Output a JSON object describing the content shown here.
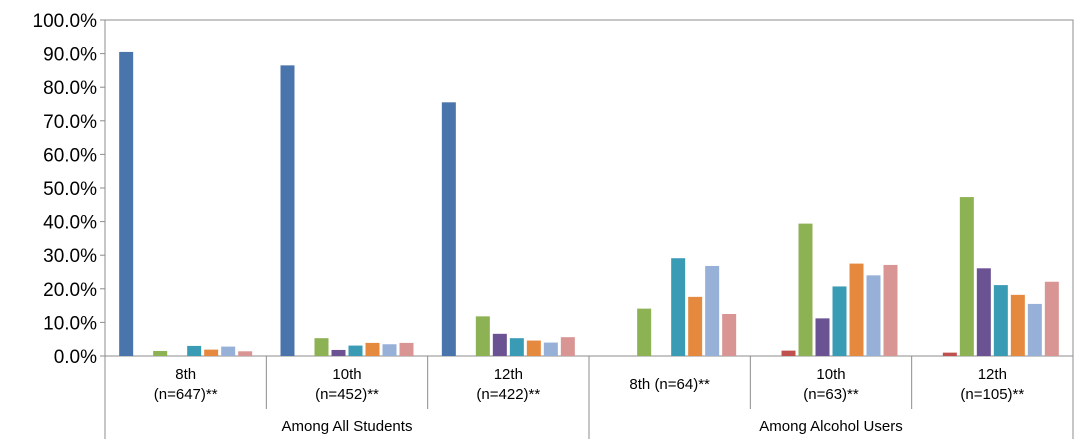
{
  "chart_data": {
    "type": "bar",
    "ylim": [
      0,
      100
    ],
    "yticks": [
      "0.0%",
      "10.0%",
      "20.0%",
      "30.0%",
      "40.0%",
      "50.0%",
      "60.0%",
      "70.0%",
      "80.0%",
      "90.0%",
      "100.0%"
    ],
    "grid": false,
    "legend": "none",
    "groups": [
      {
        "label": "Among All Students"
      },
      {
        "label": "Among Alcohol Users"
      }
    ],
    "categories": [
      {
        "line1": "8th",
        "line2": "(n=647)**"
      },
      {
        "line1": "10th",
        "line2": "(n=452)**"
      },
      {
        "line1": "12th",
        "line2": "(n=422)**"
      },
      {
        "line1": "8th (n=64)**",
        "line2": ""
      },
      {
        "line1": "10th",
        "line2": "(n=63)**"
      },
      {
        "line1": "12th",
        "line2": "(n=105)**"
      }
    ],
    "series": [
      {
        "color": "#4A74AC",
        "values": [
          90.5,
          86.5,
          75.5,
          0.0,
          0.0,
          0.0
        ]
      },
      {
        "color": "#C0504D",
        "values": [
          0.0,
          0.0,
          0.0,
          0.0,
          1.6,
          1.0
        ]
      },
      {
        "color": "#8DB254",
        "values": [
          1.5,
          5.3,
          11.8,
          14.1,
          39.4,
          47.3
        ]
      },
      {
        "color": "#6B5393",
        "values": [
          0.0,
          1.8,
          6.6,
          0.0,
          11.2,
          26.1
        ]
      },
      {
        "color": "#3A9BB5",
        "values": [
          3.0,
          3.1,
          5.3,
          29.1,
          20.7,
          21.1
        ]
      },
      {
        "color": "#E5893E",
        "values": [
          1.9,
          3.9,
          4.6,
          17.6,
          27.5,
          18.2
        ]
      },
      {
        "color": "#97B0D8",
        "values": [
          2.8,
          3.5,
          4.0,
          26.8,
          24.0,
          15.5
        ]
      },
      {
        "color": "#D99594",
        "values": [
          1.4,
          3.9,
          5.6,
          12.5,
          27.1,
          22.1
        ]
      }
    ]
  }
}
